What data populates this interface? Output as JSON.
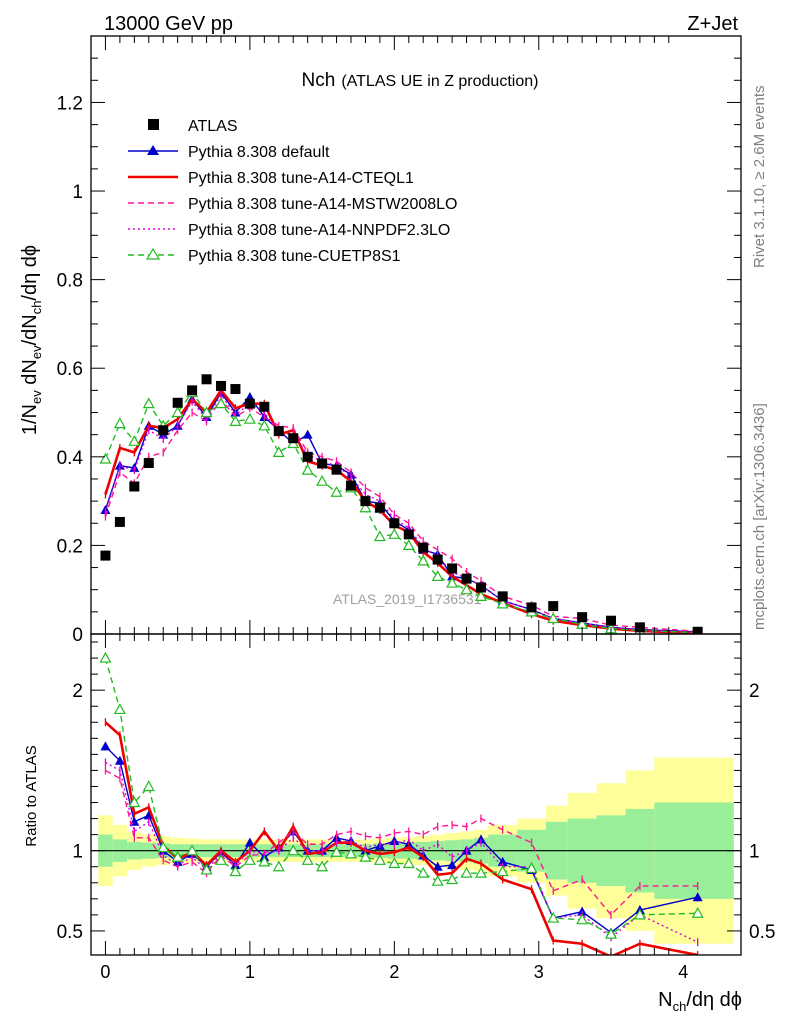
{
  "header": {
    "left": "13000 GeV pp",
    "right": "Z+Jet"
  },
  "side_text": {
    "rivet": "Rivet 3.1.10, ≥ 2.6M events",
    "mcplots": "mcplots.cern.ch [arXiv:1306.3436]"
  },
  "chart_data": [
    {
      "type": "scatter",
      "title_main": "Nch",
      "title_sub": "(ATLAS UE in Z production)",
      "ylabel": "1/N_ev dN_ev/dN_ch/dη dϕ",
      "watermark": "ATLAS_2019_I1736531",
      "xlim": [
        -0.1,
        4.4
      ],
      "ylim": [
        0,
        1.35
      ],
      "yticks": [
        "0",
        "0.2",
        "0.4",
        "0.6",
        "0.8",
        "1",
        "1.2"
      ],
      "legend_position": "top-left",
      "legend": [
        {
          "label": "ATLAS",
          "color": "#000000",
          "style": "square"
        },
        {
          "label": "Pythia 8.308 default",
          "color": "#0000cc",
          "style": "solid-triangle"
        },
        {
          "label": "Pythia 8.308 tune-A14-CTEQL1",
          "color": "#ee0000",
          "style": "solid-thick"
        },
        {
          "label": "Pythia 8.308 tune-A14-MSTW2008LO",
          "color": "#ff1493",
          "style": "dashed"
        },
        {
          "label": "Pythia 8.308 tune-A14-NNPDF2.3LO",
          "color": "#dd00dd",
          "style": "dotted"
        },
        {
          "label": "Pythia 8.308 tune-CUETP8S1",
          "color": "#22bb22",
          "style": "dashed-open-triangle"
        }
      ],
      "x": [
        0.0,
        0.1,
        0.2,
        0.3,
        0.4,
        0.5,
        0.6,
        0.7,
        0.8,
        0.9,
        1.0,
        1.1,
        1.2,
        1.3,
        1.4,
        1.5,
        1.6,
        1.7,
        1.8,
        1.9,
        2.0,
        2.1,
        2.2,
        2.3,
        2.4,
        2.5,
        2.6,
        2.75,
        2.95,
        3.1,
        3.3,
        3.5,
        3.7,
        4.1
      ],
      "series": [
        {
          "name": "ATLAS",
          "values": [
            0.177,
            0.253,
            0.333,
            0.386,
            0.46,
            0.522,
            0.55,
            0.575,
            0.56,
            0.553,
            0.52,
            0.513,
            0.458,
            0.442,
            0.4,
            0.385,
            0.371,
            0.335,
            0.3,
            0.285,
            0.25,
            0.225,
            0.195,
            0.168,
            0.148,
            0.125,
            0.105,
            0.085,
            0.06,
            0.063,
            0.038,
            0.03,
            0.015,
            0.005
          ]
        },
        {
          "name": "Pythia 8.308 default",
          "values": [
            0.28,
            0.38,
            0.375,
            0.47,
            0.45,
            0.47,
            0.53,
            0.49,
            0.545,
            0.5,
            0.535,
            0.49,
            0.46,
            0.43,
            0.45,
            0.385,
            0.38,
            0.36,
            0.3,
            0.295,
            0.255,
            0.235,
            0.19,
            0.18,
            0.13,
            0.125,
            0.11,
            0.075,
            0.055,
            0.035,
            0.025,
            0.015,
            0.01,
            0.005
          ]
        },
        {
          "name": "Pythia 8.308 tune-A14-CTEQL1",
          "values": [
            0.315,
            0.42,
            0.41,
            0.47,
            0.465,
            0.485,
            0.53,
            0.5,
            0.55,
            0.51,
            0.52,
            0.52,
            0.45,
            0.46,
            0.39,
            0.38,
            0.37,
            0.345,
            0.3,
            0.28,
            0.245,
            0.23,
            0.185,
            0.16,
            0.13,
            0.11,
            0.09,
            0.07,
            0.045,
            0.03,
            0.02,
            0.012,
            0.007,
            0.002
          ]
        },
        {
          "name": "Pythia 8.308 tune-A14-MSTW2008LO",
          "values": [
            0.265,
            0.365,
            0.34,
            0.4,
            0.41,
            0.46,
            0.5,
            0.48,
            0.53,
            0.49,
            0.51,
            0.49,
            0.47,
            0.465,
            0.41,
            0.4,
            0.39,
            0.365,
            0.33,
            0.31,
            0.27,
            0.25,
            0.21,
            0.19,
            0.17,
            0.14,
            0.12,
            0.085,
            0.065,
            0.04,
            0.035,
            0.02,
            0.015,
            0.006
          ]
        },
        {
          "name": "Pythia 8.308 tune-A14-NNPDF2.3LO",
          "values": [
            0.275,
            0.38,
            0.37,
            0.46,
            0.44,
            0.47,
            0.525,
            0.485,
            0.54,
            0.495,
            0.52,
            0.5,
            0.455,
            0.45,
            0.405,
            0.39,
            0.38,
            0.355,
            0.315,
            0.3,
            0.26,
            0.24,
            0.195,
            0.175,
            0.14,
            0.125,
            0.11,
            0.075,
            0.055,
            0.035,
            0.025,
            0.014,
            0.008,
            0.003
          ]
        },
        {
          "name": "Pythia 8.308 tune-CUETP8S1",
          "values": [
            0.395,
            0.475,
            0.435,
            0.52,
            0.47,
            0.5,
            0.545,
            0.5,
            0.52,
            0.48,
            0.485,
            0.47,
            0.41,
            0.43,
            0.37,
            0.345,
            0.32,
            0.33,
            0.285,
            0.22,
            0.225,
            0.2,
            0.165,
            0.13,
            0.115,
            0.1,
            0.085,
            0.068,
            0.05,
            0.035,
            0.022,
            0.012,
            0.008,
            0.003
          ]
        }
      ]
    },
    {
      "type": "line",
      "ylabel": "Ratio to ATLAS",
      "xlabel": "N_ch/dη dϕ",
      "xlim": [
        -0.1,
        4.4
      ],
      "ylim": [
        0.35,
        2.35
      ],
      "xticks": [
        "0",
        "1",
        "2",
        "3",
        "4"
      ],
      "yticks": [
        "0.5",
        "1",
        "2"
      ],
      "band_edges": [
        -0.05,
        0.05,
        0.15,
        0.25,
        0.35,
        0.45,
        0.55,
        0.65,
        0.75,
        0.85,
        0.95,
        1.05,
        1.15,
        1.25,
        1.35,
        1.45,
        1.55,
        1.65,
        1.75,
        1.85,
        1.95,
        2.05,
        2.15,
        2.25,
        2.35,
        2.45,
        2.55,
        2.65,
        2.85,
        3.05,
        3.2,
        3.4,
        3.6,
        3.8,
        4.35
      ],
      "band_inner": [
        0.1,
        0.07,
        0.055,
        0.05,
        0.045,
        0.04,
        0.04,
        0.04,
        0.04,
        0.04,
        0.04,
        0.04,
        0.04,
        0.04,
        0.04,
        0.04,
        0.04,
        0.04,
        0.04,
        0.045,
        0.05,
        0.05,
        0.055,
        0.06,
        0.065,
        0.07,
        0.08,
        0.1,
        0.13,
        0.18,
        0.2,
        0.22,
        0.26,
        0.3
      ],
      "band_outer": [
        0.22,
        0.16,
        0.12,
        0.1,
        0.09,
        0.08,
        0.075,
        0.07,
        0.07,
        0.07,
        0.07,
        0.07,
        0.07,
        0.07,
        0.07,
        0.07,
        0.07,
        0.07,
        0.07,
        0.075,
        0.08,
        0.085,
        0.09,
        0.1,
        0.11,
        0.12,
        0.13,
        0.16,
        0.2,
        0.28,
        0.36,
        0.42,
        0.5,
        0.58
      ],
      "series": [
        {
          "name": "Pythia 8.308 default",
          "values": [
            1.65,
            1.56,
            1.18,
            1.22,
            1.0,
            0.93,
            0.98,
            0.9,
            0.99,
            0.91,
            1.05,
            0.96,
            1.02,
            1.12,
            1.0,
            1.0,
            1.08,
            1.06,
            1.0,
            1.03,
            1.06,
            1.04,
            0.97,
            0.9,
            0.91,
            1.0,
            1.07,
            0.93,
            0.88,
            0.58,
            0.62,
            0.49,
            0.63,
            0.71
          ]
        },
        {
          "name": "Pythia 8.308 tune-A14-CTEQL1",
          "values": [
            1.8,
            1.72,
            1.23,
            1.27,
            1.03,
            0.95,
            0.99,
            0.91,
            1.0,
            0.93,
            1.0,
            1.12,
            1.0,
            1.15,
            0.98,
            0.99,
            1.05,
            1.05,
            1.0,
            0.98,
            0.99,
            1.02,
            0.96,
            0.85,
            0.86,
            0.95,
            0.92,
            0.82,
            0.76,
            0.44,
            0.42,
            0.34,
            0.42,
            0.35
          ]
        },
        {
          "name": "Pythia 8.308 tune-A14-MSTW2008LO",
          "values": [
            1.5,
            1.45,
            1.08,
            1.08,
            0.94,
            0.9,
            0.93,
            0.86,
            0.97,
            0.9,
            0.97,
            0.98,
            1.05,
            1.12,
            1.04,
            1.04,
            1.1,
            1.12,
            1.09,
            1.08,
            1.11,
            1.12,
            1.1,
            1.15,
            1.16,
            1.15,
            1.2,
            1.13,
            1.05,
            0.75,
            0.82,
            0.6,
            0.78,
            0.78
          ]
        },
        {
          "name": "Pythia 8.308 tune-A14-NNPDF2.3LO",
          "values": [
            1.55,
            1.5,
            1.12,
            1.18,
            0.97,
            0.91,
            0.96,
            0.88,
            0.98,
            0.91,
            1.0,
            0.98,
            1.0,
            1.08,
            1.0,
            1.0,
            1.05,
            1.06,
            1.02,
            1.04,
            1.04,
            1.07,
            1.0,
            1.04,
            0.96,
            1.0,
            1.05,
            0.9,
            0.9,
            0.58,
            0.6,
            0.46,
            0.6,
            0.43
          ]
        },
        {
          "name": "Pythia 8.308 tune-CUETP8S1",
          "values": [
            2.2,
            1.88,
            1.3,
            1.4,
            1.02,
            0.96,
            1.0,
            0.88,
            0.94,
            0.87,
            0.94,
            0.93,
            0.9,
            1.0,
            0.94,
            0.9,
            0.99,
            0.98,
            0.96,
            0.94,
            0.92,
            0.92,
            0.86,
            0.81,
            0.82,
            0.86,
            0.86,
            0.87,
            0.89,
            0.58,
            0.57,
            0.48,
            0.6,
            0.61
          ]
        }
      ]
    }
  ]
}
